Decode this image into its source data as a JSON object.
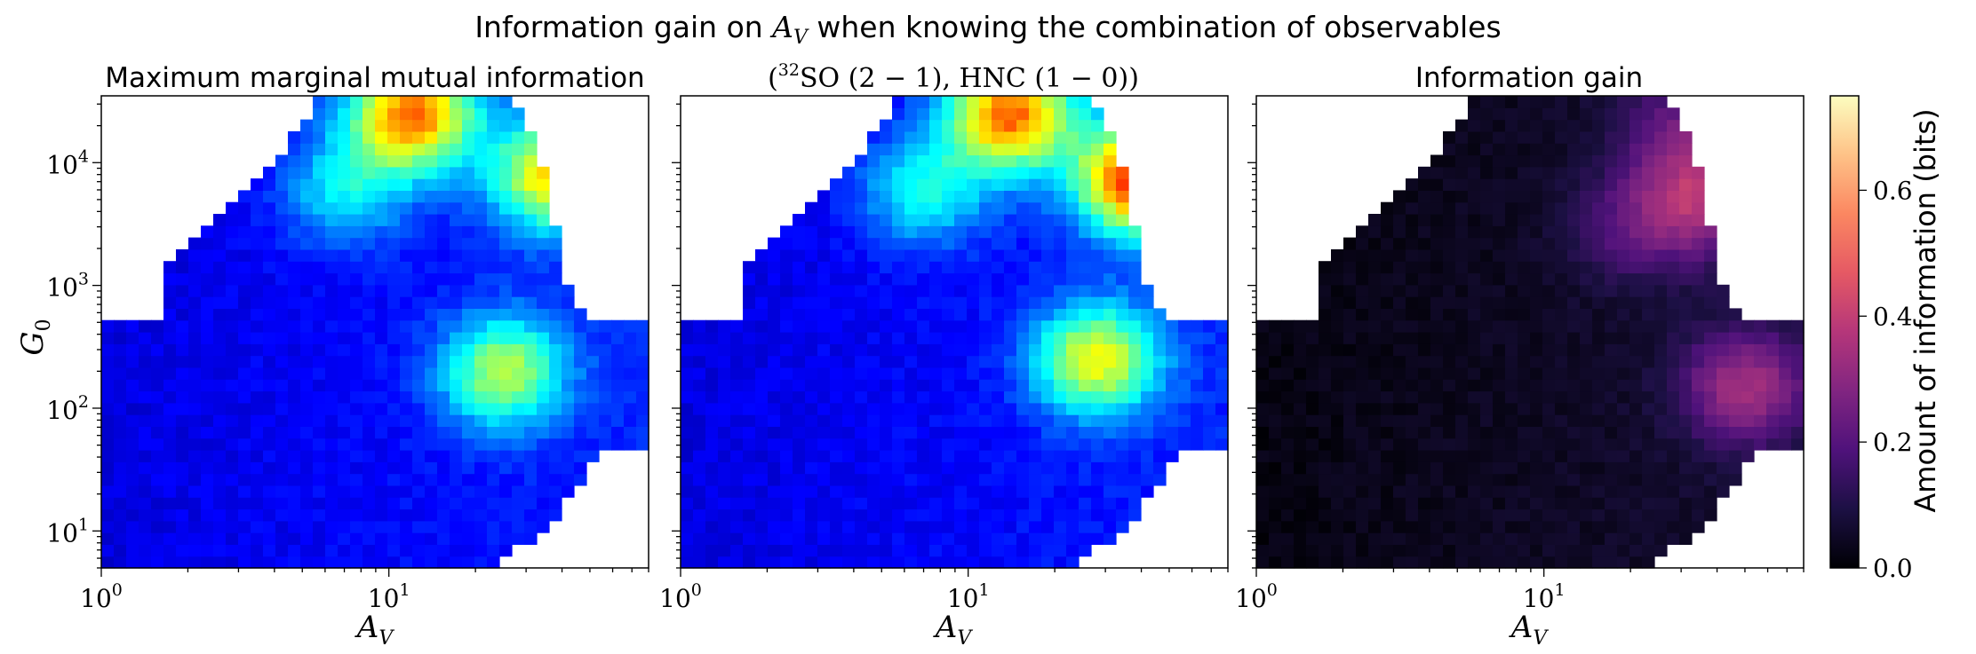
{
  "figure": {
    "suptitle_prefix": "Information gain on ",
    "suptitle_var": "A",
    "suptitle_var_sub": "V",
    "suptitle_suffix": " when knowing the combination of observables"
  },
  "colors": {
    "jet": [
      "#00007f",
      "#0000ff",
      "#007fff",
      "#00ffff",
      "#7fff7f",
      "#ffff00",
      "#ff7f00",
      "#ff0000",
      "#7f0000"
    ],
    "magma": [
      "#000004",
      "#1c1044",
      "#4f127b",
      "#812581",
      "#b5367a",
      "#e55964",
      "#fb8761",
      "#fec287",
      "#fcfdbf"
    ]
  },
  "chart_data": [
    {
      "type": "heatmap",
      "title": "Maximum marginal mutual information",
      "xlabel": "A_V",
      "ylabel": "G_0",
      "xscale": "log",
      "yscale": "log",
      "xlim": [
        1,
        80
      ],
      "ylim": [
        5,
        35000
      ],
      "xticks": [
        "10^0",
        "10^1"
      ],
      "yticks": [
        "10^1",
        "10^2",
        "10^3",
        "10^4"
      ],
      "colormap": "jet",
      "value_range": [
        0,
        0.75
      ],
      "hotspots": [
        {
          "av": 12,
          "g0": 25000,
          "value": 0.55
        },
        {
          "av": 38,
          "g0": 8000,
          "value": 0.47
        },
        {
          "av": 25,
          "g0": 200,
          "value": 0.38
        },
        {
          "av": 7,
          "g0": 6000,
          "value": 0.25
        }
      ],
      "background_value": 0.07
    },
    {
      "type": "heatmap",
      "title": "(³²SO (2 − 1), HNC (1 − 0))",
      "title_parts": {
        "open": "(",
        "sup": "32",
        "a": "SO (2 − 1), HNC (1 − 0))"
      },
      "xlabel": "A_V",
      "xscale": "log",
      "yscale": "log",
      "xlim": [
        1,
        80
      ],
      "ylim": [
        5,
        35000
      ],
      "xticks": [
        "10^0",
        "10^1"
      ],
      "colormap": "jet",
      "value_range": [
        0,
        0.75
      ],
      "hotspots": [
        {
          "av": 14,
          "g0": 25000,
          "value": 0.55
        },
        {
          "av": 40,
          "g0": 7500,
          "value": 0.62
        },
        {
          "av": 28,
          "g0": 250,
          "value": 0.43
        },
        {
          "av": 7,
          "g0": 6000,
          "value": 0.27
        }
      ],
      "background_value": 0.07
    },
    {
      "type": "heatmap",
      "title": "Information gain",
      "xlabel": "A_V",
      "xscale": "log",
      "yscale": "log",
      "xlim": [
        1,
        80
      ],
      "ylim": [
        5,
        35000
      ],
      "xticks": [
        "10^0",
        "10^1"
      ],
      "colormap": "magma",
      "value_range": [
        0,
        0.75
      ],
      "hotspots": [
        {
          "av": 35,
          "g0": 5000,
          "value": 0.3
        },
        {
          "av": 50,
          "g0": 150,
          "value": 0.3
        },
        {
          "av": 30,
          "g0": 20000,
          "value": 0.18
        },
        {
          "av": 20,
          "g0": 3000,
          "value": 0.15
        }
      ],
      "background_value": 0.02
    }
  ],
  "colorbar": {
    "label": "Amount of information (bits)",
    "ticks": [
      "0.0",
      "0.2",
      "0.4",
      "0.6"
    ],
    "tick_values": [
      0,
      0.2,
      0.4,
      0.6
    ],
    "range": [
      0,
      0.75
    ]
  }
}
